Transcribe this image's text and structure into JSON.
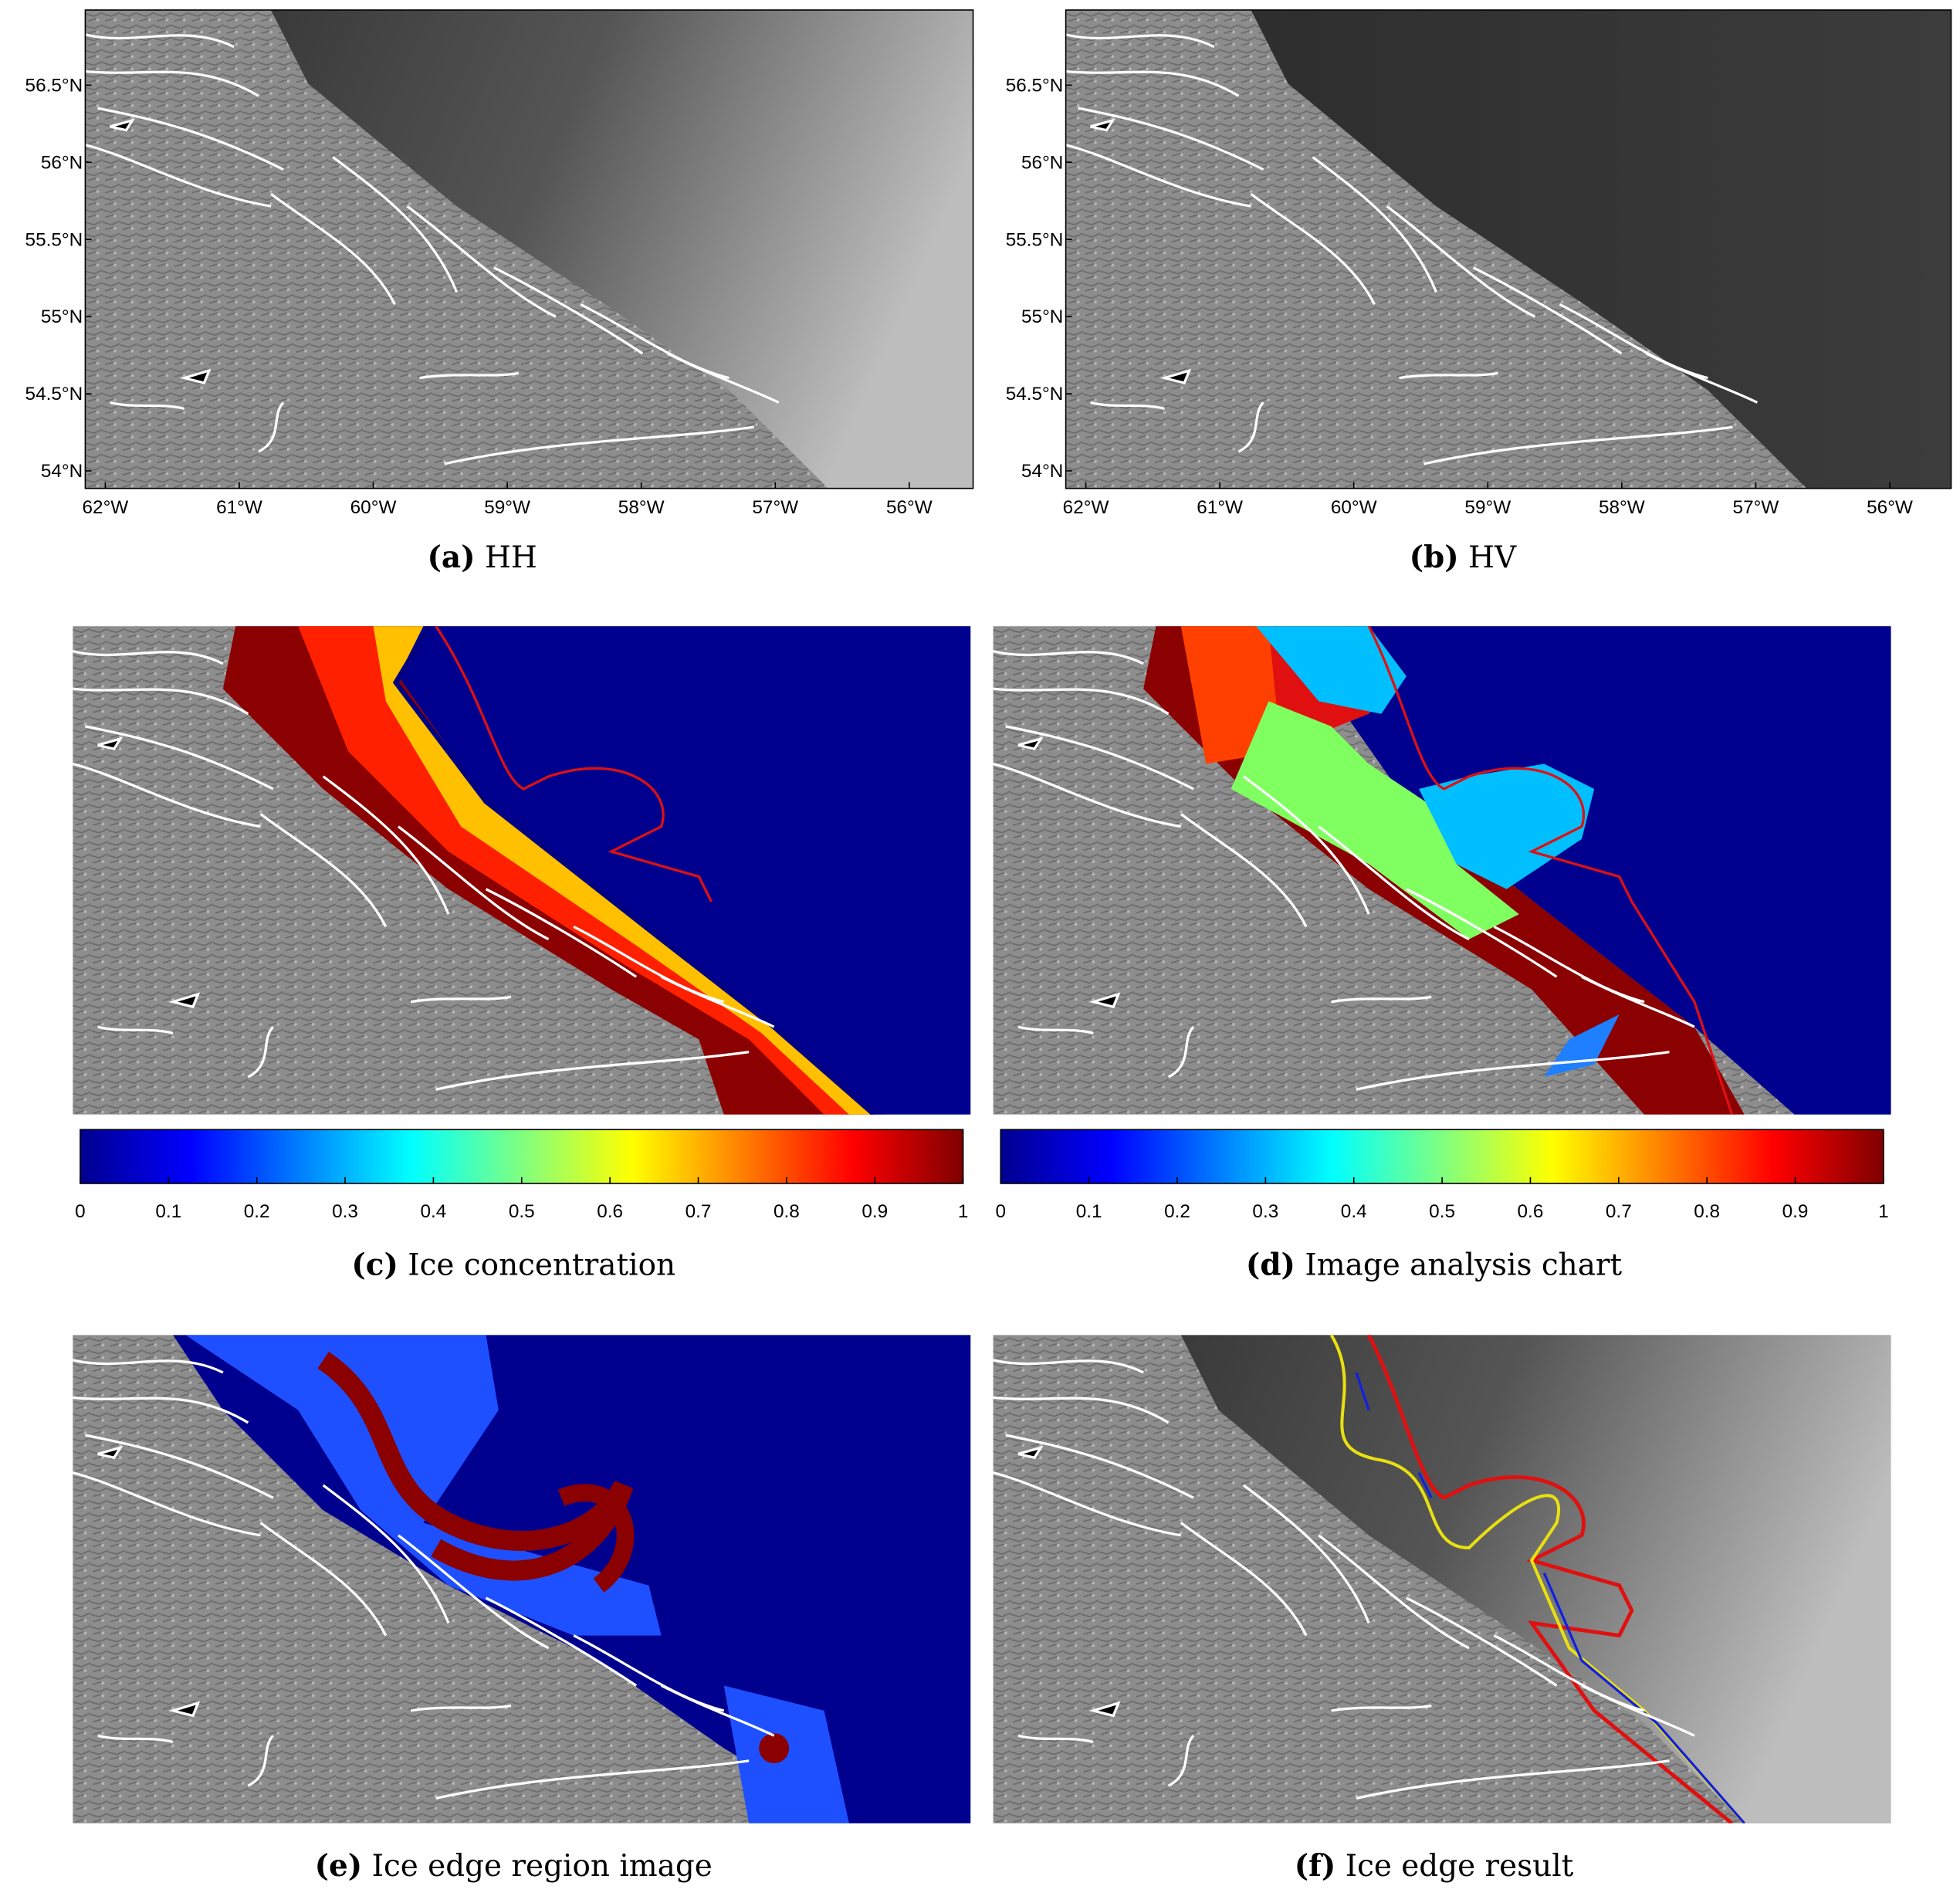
{
  "map_axes": {
    "lat_ticks": [
      "56.5°N",
      "56°N",
      "55.5°N",
      "55°N",
      "54.5°N",
      "54°N"
    ],
    "lon_ticks": [
      "62°W",
      "61°W",
      "60°W",
      "59°W",
      "58°W",
      "57°W",
      "56°W"
    ]
  },
  "colorbar": {
    "ticks": [
      0,
      0.1,
      0.2,
      0.3,
      0.4,
      0.5,
      0.6,
      0.7,
      0.8,
      0.9,
      1
    ]
  },
  "panels": [
    {
      "label": "(a)",
      "caption": "HH"
    },
    {
      "label": "(b)",
      "caption": "HV"
    },
    {
      "label": "(c)",
      "caption": "Ice concentration"
    },
    {
      "label": "(d)",
      "caption": "Image analysis chart"
    },
    {
      "label": "(e)",
      "caption": "Ice edge region image"
    },
    {
      "label": "(f)",
      "caption": "Ice edge result"
    }
  ]
}
